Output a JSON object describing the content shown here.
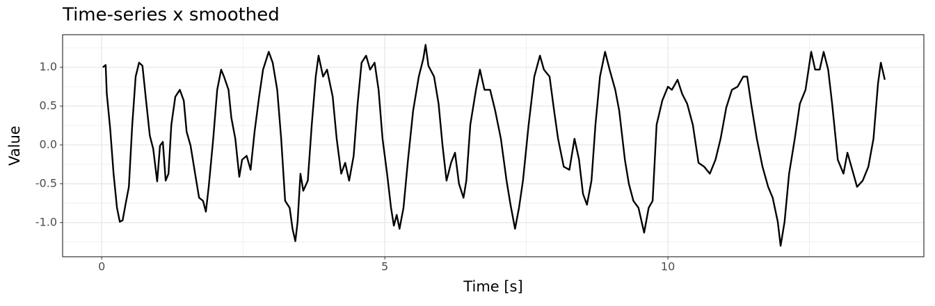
{
  "chart_data": {
    "type": "line",
    "title": "Time-series x smoothed",
    "x_label": "Time [s]",
    "y_label": "Value",
    "x": [
      0.02,
      0.07,
      0.09,
      0.15,
      0.21,
      0.27,
      0.32,
      0.37,
      0.42,
      0.48,
      0.54,
      0.6,
      0.66,
      0.72,
      0.79,
      0.85,
      0.91,
      0.98,
      1.03,
      1.08,
      1.13,
      1.18,
      1.23,
      1.3,
      1.38,
      1.45,
      1.5,
      1.57,
      1.65,
      1.72,
      1.79,
      1.84,
      1.89,
      1.97,
      2.04,
      2.11,
      2.16,
      2.24,
      2.29,
      2.36,
      2.43,
      2.48,
      2.56,
      2.63,
      2.7,
      2.78,
      2.85,
      2.95,
      3.02,
      3.1,
      3.17,
      3.24,
      3.32,
      3.37,
      3.42,
      3.46,
      3.51,
      3.56,
      3.64,
      3.71,
      3.78,
      3.83,
      3.91,
      3.98,
      4.08,
      4.15,
      4.23,
      4.3,
      4.37,
      4.45,
      4.52,
      4.59,
      4.67,
      4.74,
      4.82,
      4.89,
      4.96,
      5.04,
      5.11,
      5.16,
      5.21,
      5.26,
      5.33,
      5.41,
      5.5,
      5.6,
      5.68,
      5.72,
      5.77,
      5.87,
      5.95,
      6.02,
      6.09,
      6.17,
      6.24,
      6.31,
      6.39,
      6.44,
      6.51,
      6.61,
      6.68,
      6.76,
      6.86,
      6.95,
      7.05,
      7.15,
      7.22,
      7.3,
      7.37,
      7.44,
      7.54,
      7.64,
      7.74,
      7.81,
      7.91,
      7.99,
      8.06,
      8.16,
      8.26,
      8.35,
      8.43,
      8.5,
      8.57,
      8.65,
      8.72,
      8.8,
      8.89,
      8.97,
      9.07,
      9.14,
      9.24,
      9.31,
      9.39,
      9.48,
      9.58,
      9.66,
      9.73,
      9.8,
      9.9,
      10.0,
      10.07,
      10.17,
      10.25,
      10.34,
      10.44,
      10.54,
      10.64,
      10.74,
      10.84,
      10.93,
      11.03,
      11.13,
      11.23,
      11.33,
      11.4,
      11.47,
      11.57,
      11.67,
      11.77,
      11.85,
      11.94,
      11.99,
      12.06,
      12.14,
      12.24,
      12.33,
      12.43,
      12.53,
      12.6,
      12.68,
      12.75,
      12.83,
      12.9,
      13.0,
      13.1,
      13.17,
      13.24,
      13.34,
      13.44,
      13.54,
      13.63,
      13.71,
      13.76,
      13.83
    ],
    "series": [
      {
        "name": "x smoothed",
        "color": "#000000",
        "values": [
          1.0,
          1.03,
          0.66,
          0.21,
          -0.37,
          -0.81,
          -0.99,
          -0.97,
          -0.77,
          -0.54,
          0.26,
          0.88,
          1.06,
          1.02,
          0.53,
          0.12,
          -0.05,
          -0.47,
          -0.01,
          0.04,
          -0.46,
          -0.37,
          0.26,
          0.62,
          0.71,
          0.57,
          0.17,
          -0.01,
          -0.37,
          -0.68,
          -0.72,
          -0.86,
          -0.54,
          0.08,
          0.71,
          0.97,
          0.88,
          0.71,
          0.35,
          0.08,
          -0.41,
          -0.19,
          -0.14,
          -0.32,
          0.17,
          0.62,
          0.97,
          1.2,
          1.06,
          0.71,
          0.08,
          -0.72,
          -0.81,
          -1.08,
          -1.24,
          -0.99,
          -0.37,
          -0.59,
          -0.46,
          0.26,
          0.88,
          1.15,
          0.88,
          0.97,
          0.62,
          0.08,
          -0.37,
          -0.23,
          -0.46,
          -0.14,
          0.53,
          1.06,
          1.15,
          0.97,
          1.06,
          0.71,
          0.08,
          -0.37,
          -0.81,
          -1.04,
          -0.9,
          -1.08,
          -0.81,
          -0.19,
          0.44,
          0.88,
          1.11,
          1.29,
          1.02,
          0.88,
          0.53,
          -0.01,
          -0.46,
          -0.23,
          -0.1,
          -0.5,
          -0.68,
          -0.46,
          0.26,
          0.71,
          0.97,
          0.71,
          0.71,
          0.44,
          0.08,
          -0.46,
          -0.77,
          -1.08,
          -0.81,
          -0.46,
          0.26,
          0.88,
          1.15,
          0.97,
          0.88,
          0.44,
          0.08,
          -0.28,
          -0.32,
          0.08,
          -0.19,
          -0.63,
          -0.77,
          -0.46,
          0.26,
          0.88,
          1.2,
          0.97,
          0.71,
          0.44,
          -0.19,
          -0.5,
          -0.72,
          -0.81,
          -1.13,
          -0.81,
          -0.72,
          0.26,
          0.57,
          0.75,
          0.71,
          0.84,
          0.66,
          0.53,
          0.26,
          -0.23,
          -0.28,
          -0.37,
          -0.19,
          0.08,
          0.48,
          0.71,
          0.75,
          0.88,
          0.88,
          0.53,
          0.08,
          -0.28,
          -0.54,
          -0.68,
          -0.99,
          -1.3,
          -0.99,
          -0.37,
          0.08,
          0.53,
          0.71,
          1.2,
          0.97,
          0.97,
          1.2,
          0.97,
          0.53,
          -0.19,
          -0.37,
          -0.1,
          -0.28,
          -0.54,
          -0.46,
          -0.28,
          0.08,
          0.79,
          1.06,
          0.84
        ]
      }
    ],
    "xlim": [
      -0.69,
      14.52
    ],
    "ylim": [
      -1.44,
      1.42
    ],
    "xticks": [
      0,
      5,
      10
    ],
    "yticks": [
      {
        "value": 1,
        "label": "1.0"
      },
      {
        "value": 0.5,
        "label": "0.5"
      },
      {
        "value": 0,
        "label": "0.0"
      },
      {
        "value": -0.5,
        "label": "-0.5"
      },
      {
        "value": -1,
        "label": "-1.0"
      }
    ],
    "x_minor_ticks": [
      2.5,
      7.5,
      12.5
    ],
    "y_minor_ticks": [
      1.25,
      0.75,
      0.25,
      -0.25,
      -0.75,
      -1.25
    ],
    "grid": true
  }
}
